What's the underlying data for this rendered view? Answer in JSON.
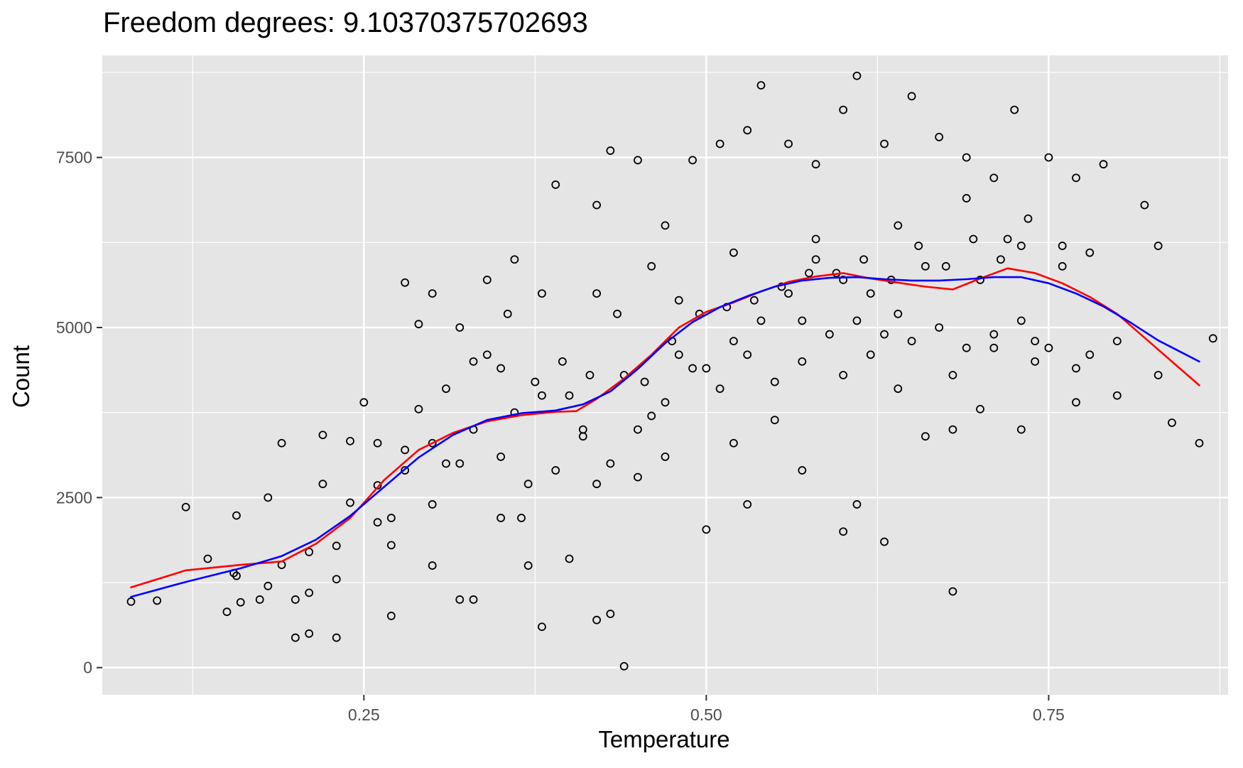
{
  "chart_data": {
    "type": "scatter",
    "title": "Freedom degrees: 9.10370375702693",
    "xlabel": "Temperature",
    "ylabel": "Count",
    "xlim": [
      0.059,
      0.881
    ],
    "ylim": [
      -400,
      9000
    ],
    "x_ticks": [
      0.25,
      0.5,
      0.75
    ],
    "x_tick_labels": [
      "0.25",
      "0.50",
      "0.75"
    ],
    "x_minor_ticks": [
      0.125,
      0.375,
      0.625,
      0.875
    ],
    "y_ticks": [
      0,
      2500,
      5000,
      7500
    ],
    "y_tick_labels": [
      "0",
      "2500",
      "5000",
      "7500"
    ],
    "y_minor_ticks": [
      1250,
      3750,
      6250,
      8750
    ],
    "grid": true,
    "colors": {
      "panel_background": "#e5e5e5",
      "grid": "#ffffff",
      "points": "#000000",
      "red_curve": "#ff0000",
      "blue_curve": "#0000ff",
      "tick_text": "#4d4d4d",
      "axis_ticks": "#333333"
    },
    "series": [
      {
        "mark": "point",
        "points": [
          [
            0.099,
            985
          ],
          [
            0.136,
            1600
          ],
          [
            0.157,
            2236
          ],
          [
            0.157,
            1349
          ],
          [
            0.174,
            1000
          ],
          [
            0.18,
            2500
          ],
          [
            0.19,
            1510
          ],
          [
            0.2,
            1000
          ],
          [
            0.21,
            1100
          ],
          [
            0.22,
            2700
          ],
          [
            0.23,
            1790
          ],
          [
            0.24,
            2425
          ],
          [
            0.26,
            2136
          ],
          [
            0.27,
            1800
          ],
          [
            0.28,
            3200
          ],
          [
            0.3,
            1500
          ],
          [
            0.32,
            3000
          ],
          [
            0.35,
            2200
          ],
          [
            0.36,
            3750
          ],
          [
            0.37,
            1500
          ],
          [
            0.38,
            4000
          ],
          [
            0.4,
            4000
          ],
          [
            0.42,
            2700
          ],
          [
            0.44,
            4300
          ],
          [
            0.46,
            3700
          ],
          [
            0.48,
            4600
          ],
          [
            0.5,
            4400
          ],
          [
            0.52,
            4800
          ],
          [
            0.54,
            5100
          ],
          [
            0.56,
            5500
          ],
          [
            0.58,
            6000
          ],
          [
            0.6,
            5700
          ],
          [
            0.62,
            4600
          ],
          [
            0.64,
            5200
          ],
          [
            0.66,
            5900
          ],
          [
            0.68,
            4300
          ],
          [
            0.7,
            5700
          ],
          [
            0.72,
            6300
          ],
          [
            0.74,
            4800
          ],
          [
            0.76,
            5900
          ],
          [
            0.78,
            4600
          ],
          [
            0.8,
            4000
          ],
          [
            0.84,
            3600
          ],
          [
            0.86,
            3300
          ],
          [
            0.25,
            3900
          ],
          [
            0.28,
            5660
          ],
          [
            0.3,
            5500
          ],
          [
            0.32,
            5000
          ],
          [
            0.34,
            5700
          ],
          [
            0.36,
            6000
          ],
          [
            0.39,
            7100
          ],
          [
            0.42,
            6800
          ],
          [
            0.43,
            7600
          ],
          [
            0.45,
            7460
          ],
          [
            0.47,
            6500
          ],
          [
            0.49,
            7460
          ],
          [
            0.51,
            7700
          ],
          [
            0.53,
            7900
          ],
          [
            0.54,
            8560
          ],
          [
            0.56,
            7700
          ],
          [
            0.58,
            7400
          ],
          [
            0.6,
            8200
          ],
          [
            0.61,
            8700
          ],
          [
            0.63,
            7700
          ],
          [
            0.65,
            8400
          ],
          [
            0.67,
            7800
          ],
          [
            0.69,
            7500
          ],
          [
            0.71,
            7200
          ],
          [
            0.725,
            8200
          ],
          [
            0.75,
            7500
          ],
          [
            0.77,
            7200
          ],
          [
            0.79,
            7400
          ],
          [
            0.82,
            6800
          ],
          [
            0.83,
            6200
          ],
          [
            0.87,
            4840
          ],
          [
            0.44,
            20
          ],
          [
            0.2,
            440
          ],
          [
            0.23,
            440
          ],
          [
            0.27,
            760
          ],
          [
            0.32,
            1000
          ],
          [
            0.38,
            600
          ],
          [
            0.42,
            700
          ],
          [
            0.43,
            790
          ],
          [
            0.5,
            2030
          ],
          [
            0.6,
            2000
          ],
          [
            0.63,
            1850
          ],
          [
            0.68,
            1120
          ],
          [
            0.61,
            2400
          ],
          [
            0.53,
            2400
          ],
          [
            0.57,
            2900
          ],
          [
            0.55,
            3640
          ],
          [
            0.47,
            3100
          ],
          [
            0.41,
            3500
          ],
          [
            0.35,
            4400
          ],
          [
            0.3,
            2400
          ],
          [
            0.33,
            1000
          ],
          [
            0.26,
            3300
          ],
          [
            0.24,
            3330
          ],
          [
            0.22,
            3420
          ],
          [
            0.19,
            3300
          ],
          [
            0.16,
            960
          ],
          [
            0.15,
            820
          ],
          [
            0.12,
            2360
          ],
          [
            0.08,
            970
          ],
          [
            0.21,
            500
          ],
          [
            0.365,
            2200
          ],
          [
            0.4,
            1600
          ],
          [
            0.45,
            2800
          ],
          [
            0.48,
            5400
          ],
          [
            0.52,
            3300
          ],
          [
            0.57,
            5100
          ],
          [
            0.6,
            4300
          ],
          [
            0.64,
            4100
          ],
          [
            0.66,
            3400
          ],
          [
            0.7,
            3800
          ],
          [
            0.73,
            3500
          ],
          [
            0.77,
            3900
          ],
          [
            0.8,
            4800
          ],
          [
            0.83,
            4300
          ],
          [
            0.64,
            6500
          ],
          [
            0.69,
            6900
          ],
          [
            0.73,
            6200
          ],
          [
            0.76,
            6200
          ],
          [
            0.78,
            6100
          ],
          [
            0.68,
            3500
          ],
          [
            0.71,
            4700
          ],
          [
            0.74,
            4500
          ],
          [
            0.62,
            5500
          ],
          [
            0.58,
            6300
          ],
          [
            0.52,
            6100
          ],
          [
            0.46,
            5900
          ],
          [
            0.42,
            5500
          ],
          [
            0.38,
            5500
          ],
          [
            0.34,
            4600
          ],
          [
            0.29,
            3800
          ],
          [
            0.27,
            2200
          ],
          [
            0.23,
            1300
          ],
          [
            0.21,
            1700
          ],
          [
            0.18,
            1200
          ],
          [
            0.155,
            1390
          ],
          [
            0.26,
            2680
          ],
          [
            0.28,
            2900
          ],
          [
            0.3,
            3300
          ],
          [
            0.31,
            3000
          ],
          [
            0.33,
            3500
          ],
          [
            0.35,
            3100
          ],
          [
            0.37,
            2700
          ],
          [
            0.39,
            2900
          ],
          [
            0.41,
            3400
          ],
          [
            0.43,
            3000
          ],
          [
            0.45,
            3500
          ],
          [
            0.47,
            3900
          ],
          [
            0.49,
            4400
          ],
          [
            0.51,
            4100
          ],
          [
            0.53,
            4600
          ],
          [
            0.55,
            4200
          ],
          [
            0.57,
            4500
          ],
          [
            0.59,
            4900
          ],
          [
            0.61,
            5100
          ],
          [
            0.63,
            4900
          ],
          [
            0.65,
            4800
          ],
          [
            0.67,
            5000
          ],
          [
            0.69,
            4700
          ],
          [
            0.71,
            4900
          ],
          [
            0.73,
            5100
          ],
          [
            0.75,
            4700
          ],
          [
            0.77,
            4400
          ],
          [
            0.29,
            5050
          ],
          [
            0.31,
            4100
          ],
          [
            0.33,
            4500
          ],
          [
            0.355,
            5200
          ],
          [
            0.375,
            4200
          ],
          [
            0.395,
            4500
          ],
          [
            0.415,
            4300
          ],
          [
            0.435,
            5200
          ],
          [
            0.455,
            4200
          ],
          [
            0.475,
            4800
          ],
          [
            0.495,
            5200
          ],
          [
            0.515,
            5300
          ],
          [
            0.535,
            5400
          ],
          [
            0.555,
            5600
          ],
          [
            0.575,
            5800
          ],
          [
            0.595,
            5800
          ],
          [
            0.615,
            6000
          ],
          [
            0.635,
            5700
          ],
          [
            0.655,
            6200
          ],
          [
            0.675,
            5900
          ],
          [
            0.695,
            6300
          ],
          [
            0.715,
            6000
          ],
          [
            0.735,
            6600
          ]
        ]
      },
      {
        "mark": "line",
        "color": "#ff0000",
        "points": [
          [
            0.08,
            1180
          ],
          [
            0.12,
            1430
          ],
          [
            0.16,
            1510
          ],
          [
            0.19,
            1560
          ],
          [
            0.215,
            1820
          ],
          [
            0.24,
            2200
          ],
          [
            0.265,
            2760
          ],
          [
            0.29,
            3200
          ],
          [
            0.315,
            3450
          ],
          [
            0.34,
            3620
          ],
          [
            0.365,
            3710
          ],
          [
            0.39,
            3760
          ],
          [
            0.405,
            3770
          ],
          [
            0.42,
            3950
          ],
          [
            0.44,
            4250
          ],
          [
            0.46,
            4600
          ],
          [
            0.48,
            5000
          ],
          [
            0.5,
            5230
          ],
          [
            0.52,
            5370
          ],
          [
            0.54,
            5530
          ],
          [
            0.56,
            5670
          ],
          [
            0.58,
            5750
          ],
          [
            0.6,
            5800
          ],
          [
            0.62,
            5720
          ],
          [
            0.64,
            5660
          ],
          [
            0.66,
            5600
          ],
          [
            0.68,
            5560
          ],
          [
            0.7,
            5720
          ],
          [
            0.72,
            5870
          ],
          [
            0.74,
            5800
          ],
          [
            0.76,
            5650
          ],
          [
            0.78,
            5450
          ],
          [
            0.8,
            5200
          ],
          [
            0.82,
            4850
          ],
          [
            0.84,
            4500
          ],
          [
            0.86,
            4150
          ]
        ]
      },
      {
        "mark": "line",
        "color": "#0000ff",
        "points": [
          [
            0.08,
            1040
          ],
          [
            0.12,
            1260
          ],
          [
            0.16,
            1460
          ],
          [
            0.19,
            1640
          ],
          [
            0.215,
            1880
          ],
          [
            0.24,
            2230
          ],
          [
            0.265,
            2660
          ],
          [
            0.29,
            3090
          ],
          [
            0.315,
            3420
          ],
          [
            0.34,
            3640
          ],
          [
            0.365,
            3740
          ],
          [
            0.39,
            3780
          ],
          [
            0.41,
            3870
          ],
          [
            0.43,
            4060
          ],
          [
            0.45,
            4390
          ],
          [
            0.47,
            4770
          ],
          [
            0.49,
            5080
          ],
          [
            0.51,
            5300
          ],
          [
            0.53,
            5460
          ],
          [
            0.55,
            5600
          ],
          [
            0.57,
            5690
          ],
          [
            0.59,
            5730
          ],
          [
            0.61,
            5740
          ],
          [
            0.63,
            5710
          ],
          [
            0.65,
            5690
          ],
          [
            0.67,
            5690
          ],
          [
            0.69,
            5710
          ],
          [
            0.71,
            5740
          ],
          [
            0.73,
            5740
          ],
          [
            0.75,
            5650
          ],
          [
            0.77,
            5500
          ],
          [
            0.79,
            5310
          ],
          [
            0.81,
            5070
          ],
          [
            0.83,
            4810
          ],
          [
            0.86,
            4500
          ]
        ]
      }
    ]
  }
}
